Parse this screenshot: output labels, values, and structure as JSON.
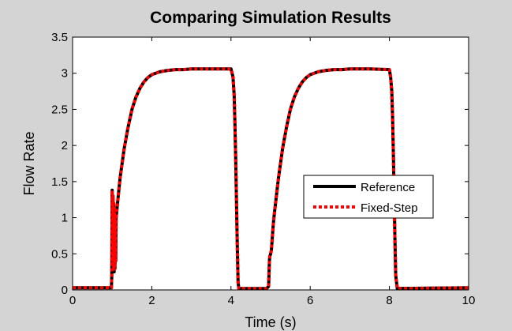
{
  "chart_data": {
    "type": "line",
    "title": "Comparing Simulation Results",
    "xlabel": "Time (s)",
    "ylabel": "Flow Rate",
    "xlim": [
      0,
      10
    ],
    "ylim": [
      0,
      3.5
    ],
    "xticks": [
      0,
      2,
      4,
      6,
      8,
      10
    ],
    "yticks": [
      0,
      0.5,
      1,
      1.5,
      2,
      2.5,
      3,
      3.5
    ],
    "grid": false,
    "legend_position": "center-right",
    "colors": {
      "figure_background": "#d4d4d4",
      "axes_background": "#ffffff",
      "reference": "#000000",
      "fixed_step": "#ff0000"
    },
    "series": [
      {
        "name": "Reference",
        "style": "solid",
        "x": [
          0,
          0.98,
          0.99,
          1.0,
          1.01,
          1.02,
          1.03,
          1.04,
          1.05,
          1.06,
          1.07,
          1.08,
          1.09,
          1.1,
          1.15,
          1.2,
          1.3,
          1.4,
          1.5,
          1.6,
          1.7,
          1.8,
          1.9,
          2.0,
          2.2,
          2.4,
          2.6,
          2.8,
          3.0,
          3.5,
          4.0,
          4.05,
          4.08,
          4.1,
          4.12,
          4.14,
          4.16,
          4.18,
          4.2,
          4.9,
          4.95,
          4.97,
          4.98,
          4.99,
          5.0,
          5.02,
          5.04,
          5.06,
          5.08,
          5.1,
          5.2,
          5.3,
          5.4,
          5.5,
          5.6,
          5.7,
          5.8,
          5.9,
          6.0,
          6.2,
          6.4,
          6.6,
          6.8,
          7.0,
          7.5,
          8.0,
          8.03,
          8.06,
          8.08,
          8.1,
          8.12,
          8.14,
          8.16,
          8.2,
          10.0
        ],
        "y": [
          0.03,
          0.03,
          0.2,
          1.38,
          0.35,
          1.3,
          0.3,
          1.2,
          0.25,
          1.12,
          0.3,
          1.05,
          0.4,
          1.0,
          1.28,
          1.55,
          1.95,
          2.25,
          2.5,
          2.67,
          2.79,
          2.88,
          2.94,
          2.98,
          3.02,
          3.04,
          3.05,
          3.05,
          3.06,
          3.06,
          3.06,
          2.95,
          2.7,
          2.3,
          1.8,
          1.2,
          0.6,
          0.1,
          0.02,
          0.02,
          0.05,
          0.4,
          0.47,
          0.48,
          0.5,
          0.55,
          0.7,
          0.85,
          0.98,
          1.08,
          1.55,
          1.95,
          2.25,
          2.5,
          2.67,
          2.79,
          2.88,
          2.94,
          2.98,
          3.02,
          3.04,
          3.05,
          3.05,
          3.06,
          3.06,
          3.05,
          2.95,
          2.75,
          2.4,
          1.9,
          1.3,
          0.7,
          0.2,
          0.02,
          0.03
        ]
      },
      {
        "name": "Fixed-Step",
        "style": "dotted",
        "x": [
          0,
          0.98,
          0.99,
          1.0,
          1.01,
          1.02,
          1.03,
          1.04,
          1.05,
          1.06,
          1.07,
          1.08,
          1.09,
          1.1,
          1.15,
          1.2,
          1.3,
          1.4,
          1.5,
          1.6,
          1.7,
          1.8,
          1.9,
          2.0,
          2.2,
          2.4,
          2.6,
          2.8,
          3.0,
          3.5,
          4.0,
          4.05,
          4.08,
          4.1,
          4.12,
          4.14,
          4.16,
          4.18,
          4.2,
          4.9,
          4.95,
          4.97,
          4.98,
          4.99,
          5.0,
          5.02,
          5.04,
          5.06,
          5.08,
          5.1,
          5.2,
          5.3,
          5.4,
          5.5,
          5.6,
          5.7,
          5.8,
          5.9,
          6.0,
          6.2,
          6.4,
          6.6,
          6.8,
          7.0,
          7.5,
          8.0,
          8.03,
          8.06,
          8.08,
          8.1,
          8.12,
          8.14,
          8.16,
          8.2,
          10.0
        ],
        "y": [
          0.03,
          0.03,
          0.2,
          1.38,
          0.35,
          1.3,
          0.3,
          1.2,
          0.25,
          1.12,
          0.3,
          1.05,
          0.4,
          1.0,
          1.28,
          1.55,
          1.95,
          2.25,
          2.5,
          2.67,
          2.79,
          2.88,
          2.94,
          2.98,
          3.02,
          3.04,
          3.05,
          3.05,
          3.06,
          3.06,
          3.06,
          2.95,
          2.7,
          2.3,
          1.8,
          1.2,
          0.6,
          0.1,
          0.02,
          0.02,
          0.05,
          0.4,
          0.47,
          0.48,
          0.5,
          0.55,
          0.7,
          0.85,
          0.98,
          1.08,
          1.55,
          1.95,
          2.25,
          2.5,
          2.67,
          2.79,
          2.88,
          2.94,
          2.98,
          3.02,
          3.04,
          3.05,
          3.05,
          3.06,
          3.06,
          3.05,
          2.95,
          2.75,
          2.4,
          1.9,
          1.3,
          0.7,
          0.2,
          0.02,
          0.03
        ]
      }
    ]
  }
}
